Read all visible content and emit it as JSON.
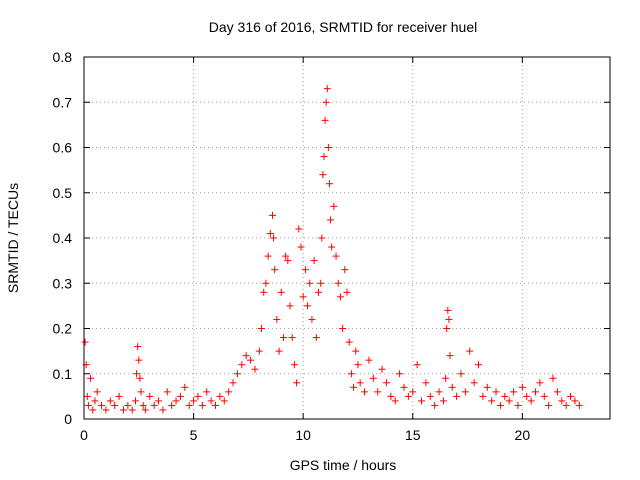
{
  "chart_data": {
    "type": "scatter",
    "title": "Day 316 of 2016, SRMTID for receiver huel",
    "xlabel": "GPS time / hours",
    "ylabel": "SRMTID / TECUs",
    "xlim": [
      0,
      24
    ],
    "ylim": [
      0,
      0.8
    ],
    "xticks": [
      "0",
      "5",
      "10",
      "15",
      "20"
    ],
    "yticks": [
      "0",
      "0.1",
      "0.2",
      "0.3",
      "0.4",
      "0.5",
      "0.6",
      "0.7",
      "0.8"
    ],
    "grid": true,
    "marker": "+",
    "color": "#ff0000",
    "series": [
      {
        "name": "SRMTID",
        "x": [
          0.05,
          0.1,
          0.15,
          0.2,
          0.3,
          0.4,
          0.5,
          0.6,
          0.8,
          1.0,
          1.2,
          1.4,
          1.6,
          1.8,
          2.0,
          2.2,
          2.35,
          2.4,
          2.45,
          2.5,
          2.55,
          2.6,
          2.7,
          2.8,
          3.0,
          3.2,
          3.4,
          3.6,
          3.8,
          4.0,
          4.2,
          4.4,
          4.6,
          4.8,
          5.0,
          5.2,
          5.4,
          5.6,
          5.8,
          6.0,
          6.2,
          6.4,
          6.6,
          6.8,
          7.0,
          7.2,
          7.4,
          7.6,
          7.8,
          8.0,
          8.1,
          8.2,
          8.3,
          8.4,
          8.5,
          8.6,
          8.65,
          8.7,
          8.8,
          8.9,
          9.0,
          9.1,
          9.2,
          9.3,
          9.4,
          9.5,
          9.6,
          9.7,
          9.8,
          9.9,
          10.0,
          10.1,
          10.2,
          10.3,
          10.4,
          10.5,
          10.6,
          10.7,
          10.8,
          10.85,
          10.9,
          10.95,
          11.0,
          11.05,
          11.1,
          11.15,
          11.2,
          11.25,
          11.3,
          11.4,
          11.5,
          11.6,
          11.7,
          11.8,
          11.9,
          12.0,
          12.1,
          12.2,
          12.3,
          12.4,
          12.5,
          12.6,
          12.8,
          13.0,
          13.2,
          13.4,
          13.6,
          13.8,
          14.0,
          14.2,
          14.4,
          14.6,
          14.8,
          15.0,
          15.2,
          15.4,
          15.6,
          15.8,
          16.0,
          16.2,
          16.4,
          16.5,
          16.55,
          16.6,
          16.65,
          16.7,
          16.8,
          17.0,
          17.2,
          17.4,
          17.6,
          17.8,
          18.0,
          18.2,
          18.4,
          18.6,
          18.8,
          19.0,
          19.2,
          19.4,
          19.6,
          19.8,
          20.0,
          20.2,
          20.4,
          20.6,
          20.8,
          21.0,
          21.2,
          21.4,
          21.6,
          21.8,
          22.0,
          22.2,
          22.4,
          22.6
        ],
        "y": [
          0.17,
          0.12,
          0.05,
          0.03,
          0.09,
          0.02,
          0.04,
          0.06,
          0.03,
          0.02,
          0.04,
          0.03,
          0.05,
          0.02,
          0.03,
          0.02,
          0.04,
          0.1,
          0.16,
          0.13,
          0.09,
          0.06,
          0.03,
          0.02,
          0.05,
          0.03,
          0.04,
          0.02,
          0.06,
          0.03,
          0.04,
          0.05,
          0.07,
          0.03,
          0.04,
          0.05,
          0.03,
          0.06,
          0.04,
          0.03,
          0.05,
          0.04,
          0.06,
          0.08,
          0.1,
          0.12,
          0.14,
          0.13,
          0.11,
          0.15,
          0.2,
          0.28,
          0.3,
          0.36,
          0.41,
          0.45,
          0.4,
          0.33,
          0.22,
          0.15,
          0.28,
          0.18,
          0.36,
          0.35,
          0.25,
          0.18,
          0.12,
          0.08,
          0.42,
          0.38,
          0.27,
          0.33,
          0.25,
          0.3,
          0.22,
          0.35,
          0.18,
          0.28,
          0.3,
          0.4,
          0.54,
          0.58,
          0.66,
          0.7,
          0.73,
          0.6,
          0.52,
          0.44,
          0.38,
          0.47,
          0.36,
          0.3,
          0.27,
          0.2,
          0.33,
          0.28,
          0.17,
          0.1,
          0.07,
          0.15,
          0.12,
          0.08,
          0.06,
          0.13,
          0.09,
          0.06,
          0.11,
          0.08,
          0.05,
          0.04,
          0.1,
          0.07,
          0.05,
          0.06,
          0.12,
          0.04,
          0.08,
          0.05,
          0.03,
          0.06,
          0.04,
          0.09,
          0.2,
          0.24,
          0.22,
          0.14,
          0.07,
          0.05,
          0.1,
          0.06,
          0.15,
          0.08,
          0.12,
          0.05,
          0.07,
          0.04,
          0.06,
          0.03,
          0.05,
          0.04,
          0.06,
          0.03,
          0.07,
          0.05,
          0.04,
          0.06,
          0.08,
          0.05,
          0.03,
          0.09,
          0.06,
          0.04,
          0.03,
          0.05,
          0.04,
          0.03
        ]
      }
    ]
  }
}
